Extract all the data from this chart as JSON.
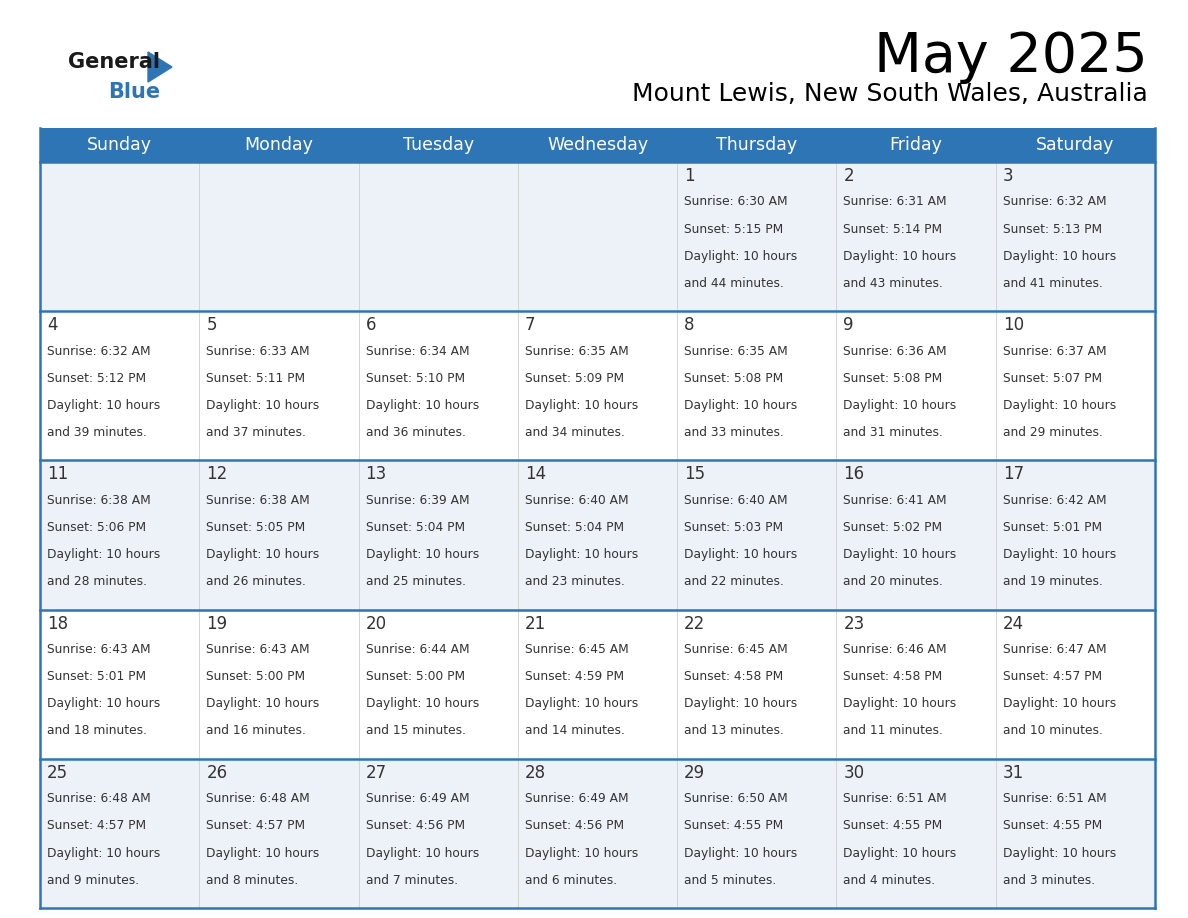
{
  "title": "May 2025",
  "subtitle": "Mount Lewis, New South Wales, Australia",
  "days_of_week": [
    "Sunday",
    "Monday",
    "Tuesday",
    "Wednesday",
    "Thursday",
    "Friday",
    "Saturday"
  ],
  "header_bg": "#2e75b6",
  "header_text": "#ffffff",
  "cell_bg_odd": "#edf2f9",
  "cell_bg_even": "#ffffff",
  "border_color": "#2e75b6",
  "text_color": "#333333",
  "calendar": [
    [
      null,
      null,
      null,
      null,
      {
        "day": 1,
        "sunrise": "6:30 AM",
        "sunset": "5:15 PM",
        "dl1": "Daylight: 10 hours",
        "dl2": "and 44 minutes."
      },
      {
        "day": 2,
        "sunrise": "6:31 AM",
        "sunset": "5:14 PM",
        "dl1": "Daylight: 10 hours",
        "dl2": "and 43 minutes."
      },
      {
        "day": 3,
        "sunrise": "6:32 AM",
        "sunset": "5:13 PM",
        "dl1": "Daylight: 10 hours",
        "dl2": "and 41 minutes."
      }
    ],
    [
      {
        "day": 4,
        "sunrise": "6:32 AM",
        "sunset": "5:12 PM",
        "dl1": "Daylight: 10 hours",
        "dl2": "and 39 minutes."
      },
      {
        "day": 5,
        "sunrise": "6:33 AM",
        "sunset": "5:11 PM",
        "dl1": "Daylight: 10 hours",
        "dl2": "and 37 minutes."
      },
      {
        "day": 6,
        "sunrise": "6:34 AM",
        "sunset": "5:10 PM",
        "dl1": "Daylight: 10 hours",
        "dl2": "and 36 minutes."
      },
      {
        "day": 7,
        "sunrise": "6:35 AM",
        "sunset": "5:09 PM",
        "dl1": "Daylight: 10 hours",
        "dl2": "and 34 minutes."
      },
      {
        "day": 8,
        "sunrise": "6:35 AM",
        "sunset": "5:08 PM",
        "dl1": "Daylight: 10 hours",
        "dl2": "and 33 minutes."
      },
      {
        "day": 9,
        "sunrise": "6:36 AM",
        "sunset": "5:08 PM",
        "dl1": "Daylight: 10 hours",
        "dl2": "and 31 minutes."
      },
      {
        "day": 10,
        "sunrise": "6:37 AM",
        "sunset": "5:07 PM",
        "dl1": "Daylight: 10 hours",
        "dl2": "and 29 minutes."
      }
    ],
    [
      {
        "day": 11,
        "sunrise": "6:38 AM",
        "sunset": "5:06 PM",
        "dl1": "Daylight: 10 hours",
        "dl2": "and 28 minutes."
      },
      {
        "day": 12,
        "sunrise": "6:38 AM",
        "sunset": "5:05 PM",
        "dl1": "Daylight: 10 hours",
        "dl2": "and 26 minutes."
      },
      {
        "day": 13,
        "sunrise": "6:39 AM",
        "sunset": "5:04 PM",
        "dl1": "Daylight: 10 hours",
        "dl2": "and 25 minutes."
      },
      {
        "day": 14,
        "sunrise": "6:40 AM",
        "sunset": "5:04 PM",
        "dl1": "Daylight: 10 hours",
        "dl2": "and 23 minutes."
      },
      {
        "day": 15,
        "sunrise": "6:40 AM",
        "sunset": "5:03 PM",
        "dl1": "Daylight: 10 hours",
        "dl2": "and 22 minutes."
      },
      {
        "day": 16,
        "sunrise": "6:41 AM",
        "sunset": "5:02 PM",
        "dl1": "Daylight: 10 hours",
        "dl2": "and 20 minutes."
      },
      {
        "day": 17,
        "sunrise": "6:42 AM",
        "sunset": "5:01 PM",
        "dl1": "Daylight: 10 hours",
        "dl2": "and 19 minutes."
      }
    ],
    [
      {
        "day": 18,
        "sunrise": "6:43 AM",
        "sunset": "5:01 PM",
        "dl1": "Daylight: 10 hours",
        "dl2": "and 18 minutes."
      },
      {
        "day": 19,
        "sunrise": "6:43 AM",
        "sunset": "5:00 PM",
        "dl1": "Daylight: 10 hours",
        "dl2": "and 16 minutes."
      },
      {
        "day": 20,
        "sunrise": "6:44 AM",
        "sunset": "5:00 PM",
        "dl1": "Daylight: 10 hours",
        "dl2": "and 15 minutes."
      },
      {
        "day": 21,
        "sunrise": "6:45 AM",
        "sunset": "4:59 PM",
        "dl1": "Daylight: 10 hours",
        "dl2": "and 14 minutes."
      },
      {
        "day": 22,
        "sunrise": "6:45 AM",
        "sunset": "4:58 PM",
        "dl1": "Daylight: 10 hours",
        "dl2": "and 13 minutes."
      },
      {
        "day": 23,
        "sunrise": "6:46 AM",
        "sunset": "4:58 PM",
        "dl1": "Daylight: 10 hours",
        "dl2": "and 11 minutes."
      },
      {
        "day": 24,
        "sunrise": "6:47 AM",
        "sunset": "4:57 PM",
        "dl1": "Daylight: 10 hours",
        "dl2": "and 10 minutes."
      }
    ],
    [
      {
        "day": 25,
        "sunrise": "6:48 AM",
        "sunset": "4:57 PM",
        "dl1": "Daylight: 10 hours",
        "dl2": "and 9 minutes."
      },
      {
        "day": 26,
        "sunrise": "6:48 AM",
        "sunset": "4:57 PM",
        "dl1": "Daylight: 10 hours",
        "dl2": "and 8 minutes."
      },
      {
        "day": 27,
        "sunrise": "6:49 AM",
        "sunset": "4:56 PM",
        "dl1": "Daylight: 10 hours",
        "dl2": "and 7 minutes."
      },
      {
        "day": 28,
        "sunrise": "6:49 AM",
        "sunset": "4:56 PM",
        "dl1": "Daylight: 10 hours",
        "dl2": "and 6 minutes."
      },
      {
        "day": 29,
        "sunrise": "6:50 AM",
        "sunset": "4:55 PM",
        "dl1": "Daylight: 10 hours",
        "dl2": "and 5 minutes."
      },
      {
        "day": 30,
        "sunrise": "6:51 AM",
        "sunset": "4:55 PM",
        "dl1": "Daylight: 10 hours",
        "dl2": "and 4 minutes."
      },
      {
        "day": 31,
        "sunrise": "6:51 AM",
        "sunset": "4:55 PM",
        "dl1": "Daylight: 10 hours",
        "dl2": "and 3 minutes."
      }
    ]
  ]
}
